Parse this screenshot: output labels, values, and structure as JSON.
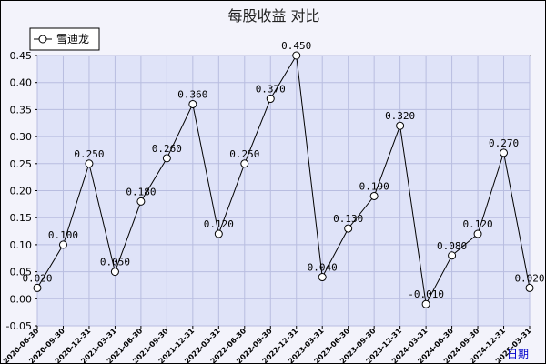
{
  "chart_data": {
    "type": "line",
    "title": "每股收益  对比",
    "xlabel": "日期",
    "ylabel": "",
    "ylim": [
      -0.05,
      0.45
    ],
    "yticks": [
      "0.45",
      "0.40",
      "0.35",
      "0.30",
      "0.25",
      "0.20",
      "0.15",
      "0.10",
      "0.05",
      "0.00",
      "-0.05"
    ],
    "ytick_values": [
      0.45,
      0.4,
      0.35,
      0.3,
      0.25,
      0.2,
      0.15,
      0.1,
      0.05,
      0.0,
      -0.05
    ],
    "grid": true,
    "legend_position": "top-left",
    "categories": [
      "2020-06-30",
      "2020-09-30",
      "2020-12-31",
      "2021-03-31",
      "2021-06-30",
      "2021-09-30",
      "2021-12-31",
      "2022-03-31",
      "2022-06-30",
      "2022-09-30",
      "2022-12-31",
      "2023-03-31",
      "2023-06-30",
      "2023-09-30",
      "2023-12-31",
      "2024-03-31",
      "2024-06-30",
      "2024-09-30",
      "2024-12-31",
      "2025-03-31"
    ],
    "series": [
      {
        "name": "雪迪龙",
        "values": [
          0.02,
          0.1,
          0.25,
          0.05,
          0.18,
          0.26,
          0.36,
          0.12,
          0.25,
          0.37,
          0.45,
          0.04,
          0.13,
          0.19,
          0.32,
          -0.01,
          0.08,
          0.12,
          0.27,
          0.02
        ],
        "labels": [
          "0.020",
          "0.100",
          "0.250",
          "0.050",
          "0.180",
          "0.260",
          "0.360",
          "0.120",
          "0.250",
          "0.370",
          "0.450",
          "0.040",
          "0.130",
          "0.190",
          "0.320",
          "-0.010",
          "0.080",
          "0.120",
          "0.270",
          "0.020"
        ]
      }
    ],
    "colors": {
      "plot_background": "#dfe3f8",
      "grid": "#b8bde0",
      "line": "#000000",
      "frame_background": "#f3f3fb",
      "xlabel": "#0000cc"
    }
  }
}
